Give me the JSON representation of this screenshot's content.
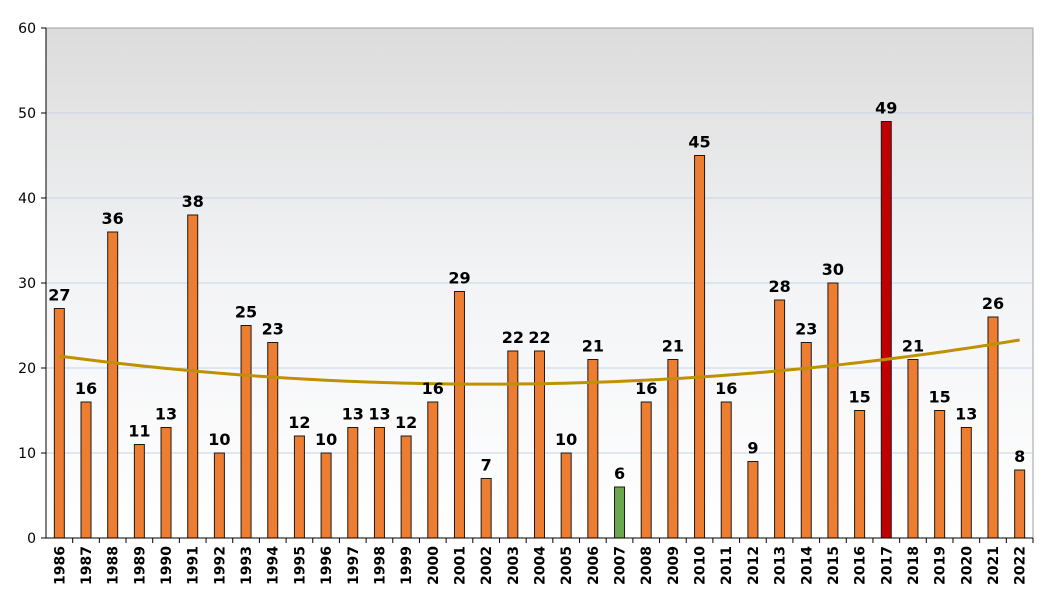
{
  "chart_data": {
    "type": "bar",
    "title": "",
    "xlabel": "",
    "ylabel": "",
    "ylim": [
      0,
      60
    ],
    "yticks": [
      0,
      10,
      20,
      30,
      40,
      50,
      60
    ],
    "grid": true,
    "categories": [
      "1986",
      "1987",
      "1988",
      "1989",
      "1990",
      "1991",
      "1992",
      "1993",
      "1994",
      "1995",
      "1996",
      "1997",
      "1998",
      "1999",
      "2000",
      "2001",
      "2002",
      "2003",
      "2004",
      "2005",
      "2006",
      "2007",
      "2008",
      "2009",
      "2010",
      "2011",
      "2012",
      "2013",
      "2014",
      "2015",
      "2016",
      "2017",
      "2018",
      "2019",
      "2020",
      "2021",
      "2022"
    ],
    "values": [
      27,
      16,
      36,
      11,
      13,
      38,
      10,
      25,
      23,
      12,
      10,
      13,
      13,
      12,
      16,
      29,
      7,
      22,
      22,
      10,
      21,
      6,
      16,
      21,
      45,
      16,
      9,
      28,
      23,
      30,
      15,
      49,
      21,
      15,
      13,
      26,
      8
    ],
    "highlights": {
      "2007": "#6aa84f",
      "2017": "#c00000"
    },
    "colors": {
      "bar": "#ed7d31",
      "trendline": "#bf9000"
    },
    "trendline": {
      "type": "polynomial",
      "start_value": 21.4,
      "min_value": 18.1,
      "min_category": "2002",
      "end_value": 23.3
    }
  }
}
